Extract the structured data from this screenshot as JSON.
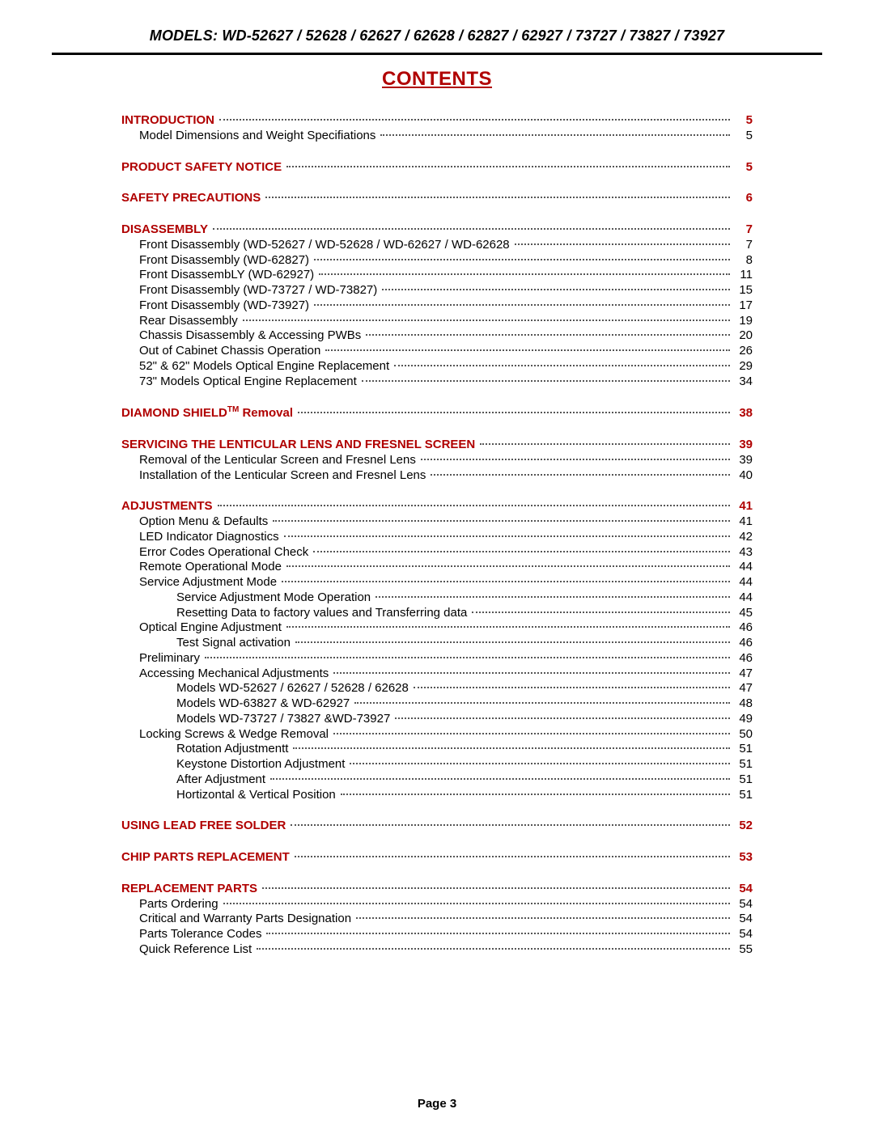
{
  "header": {
    "models_line": "MODELS: WD-52627 / 52628 / 62627 / 62628 / 62827 / 62927 / 73727 / 73827 / 73927"
  },
  "title": "CONTENTS",
  "colors": {
    "accent": "#b00000",
    "text": "#000000",
    "rule": "#000000",
    "leader": "#555555",
    "background": "#ffffff"
  },
  "typography": {
    "header_fontsize": 18,
    "title_fontsize": 24,
    "body_fontsize": 15,
    "page_number_fontsize": 15
  },
  "page_label": "Page 3",
  "toc": [
    {
      "heading": {
        "label": "INTRODUCTION",
        "page": "5"
      },
      "items": [
        {
          "indent": 1,
          "label": "Model Dimensions and Weight Specifiations",
          "page": "5"
        }
      ]
    },
    {
      "heading": {
        "label": "PRODUCT SAFETY NOTICE",
        "page": "5"
      },
      "items": []
    },
    {
      "heading": {
        "label": "SAFETY PRECAUTIONS",
        "page": "6"
      },
      "items": []
    },
    {
      "heading": {
        "label": "DISASSEMBLY",
        "page": "7"
      },
      "items": [
        {
          "indent": 1,
          "label": "Front Disassembly (WD-52627 / WD-52628 / WD-62627 / WD-62628",
          "page": "7"
        },
        {
          "indent": 1,
          "label": "Front Disassembly (WD-62827)",
          "page": "8"
        },
        {
          "indent": 1,
          "label": "Front DisassembLY (WD-62927)",
          "page": "11"
        },
        {
          "indent": 1,
          "label": "Front Disassembly (WD-73727 / WD-73827)",
          "page": "15"
        },
        {
          "indent": 1,
          "label": "Front Disassembly (WD-73927)",
          "page": "17"
        },
        {
          "indent": 1,
          "label": "Rear Disassembly",
          "page": "19"
        },
        {
          "indent": 1,
          "label": "Chassis Disassembly & Accessing PWBs",
          "page": "20"
        },
        {
          "indent": 1,
          "label": "Out of Cabinet Chassis Operation",
          "page": "26"
        },
        {
          "indent": 1,
          "label": "52\" & 62\" Models Optical Engine Replacement",
          "page": "29"
        },
        {
          "indent": 1,
          "label": "73\" Models Optical Engine Replacement",
          "page": "34"
        }
      ]
    },
    {
      "heading": {
        "label_html": "DIAMOND SHIELD<span class=\"tm\">TM</span> Removal",
        "page": "38"
      },
      "items": []
    },
    {
      "heading": {
        "label": "SERVICING THE LENTICULAR LENS AND FRESNEL SCREEN",
        "page": "39"
      },
      "items": [
        {
          "indent": 1,
          "label": "Removal of the Lenticular Screen and Fresnel Lens",
          "page": "39"
        },
        {
          "indent": 1,
          "label": "Installation of the Lenticular Screen and Fresnel Lens",
          "page": "40"
        }
      ]
    },
    {
      "heading": {
        "label": "ADJUSTMENTS",
        "page": "41"
      },
      "items": [
        {
          "indent": 1,
          "label": "Option Menu & Defaults",
          "page": "41"
        },
        {
          "indent": 1,
          "label": "LED Indicator Diagnostics",
          "page": "42"
        },
        {
          "indent": 1,
          "label": "Error Codes Operational Check",
          "page": "43"
        },
        {
          "indent": 1,
          "label": "Remote Operational Mode",
          "page": "44"
        },
        {
          "indent": 1,
          "label": "Service Adjustment Mode",
          "page": "44"
        },
        {
          "indent": 2,
          "label": "Service Adjustment Mode Operation",
          "page": "44"
        },
        {
          "indent": 2,
          "label": "Resetting Data to factory values and Transferring data",
          "page": "45"
        },
        {
          "indent": 1,
          "label": "Optical Engine Adjustment",
          "page": "46"
        },
        {
          "indent": 2,
          "label": "Test Signal activation",
          "page": "46"
        },
        {
          "indent": 1,
          "label": "Preliminary",
          "page": "46"
        },
        {
          "indent": 1,
          "label": "Accessing Mechanical Adjustments",
          "page": "47"
        },
        {
          "indent": 2,
          "label": "Models WD-52627 / 62627 / 52628 / 62628",
          "page": "47"
        },
        {
          "indent": 2,
          "label": "Models WD-63827 & WD-62927",
          "page": "48"
        },
        {
          "indent": 2,
          "label": "Models WD-73727 / 73827 &WD-73927",
          "page": "49"
        },
        {
          "indent": 1,
          "label": "Locking Screws & Wedge Removal",
          "page": "50"
        },
        {
          "indent": 2,
          "label": "Rotation Adjustmentt",
          "page": "51"
        },
        {
          "indent": 2,
          "label": "Keystone Distortion Adjustment",
          "page": "51"
        },
        {
          "indent": 2,
          "label": "After Adjustment",
          "page": "51"
        },
        {
          "indent": 2,
          "label": "Hortizontal & Vertical Position",
          "page": "51"
        }
      ]
    },
    {
      "heading": {
        "label": "USING LEAD FREE SOLDER",
        "page": "52"
      },
      "items": []
    },
    {
      "heading": {
        "label": "CHIP PARTS REPLACEMENT",
        "page": "53"
      },
      "items": []
    },
    {
      "heading": {
        "label": "REPLACEMENT PARTS",
        "page": "54"
      },
      "items": [
        {
          "indent": 1,
          "label": "Parts Ordering",
          "page": "54"
        },
        {
          "indent": 1,
          "label": "Critical and Warranty Parts Designation",
          "page": "54"
        },
        {
          "indent": 1,
          "label": "Parts Tolerance Codes",
          "page": "54"
        },
        {
          "indent": 1,
          "label": "Quick Reference List",
          "page": "55"
        }
      ]
    }
  ]
}
